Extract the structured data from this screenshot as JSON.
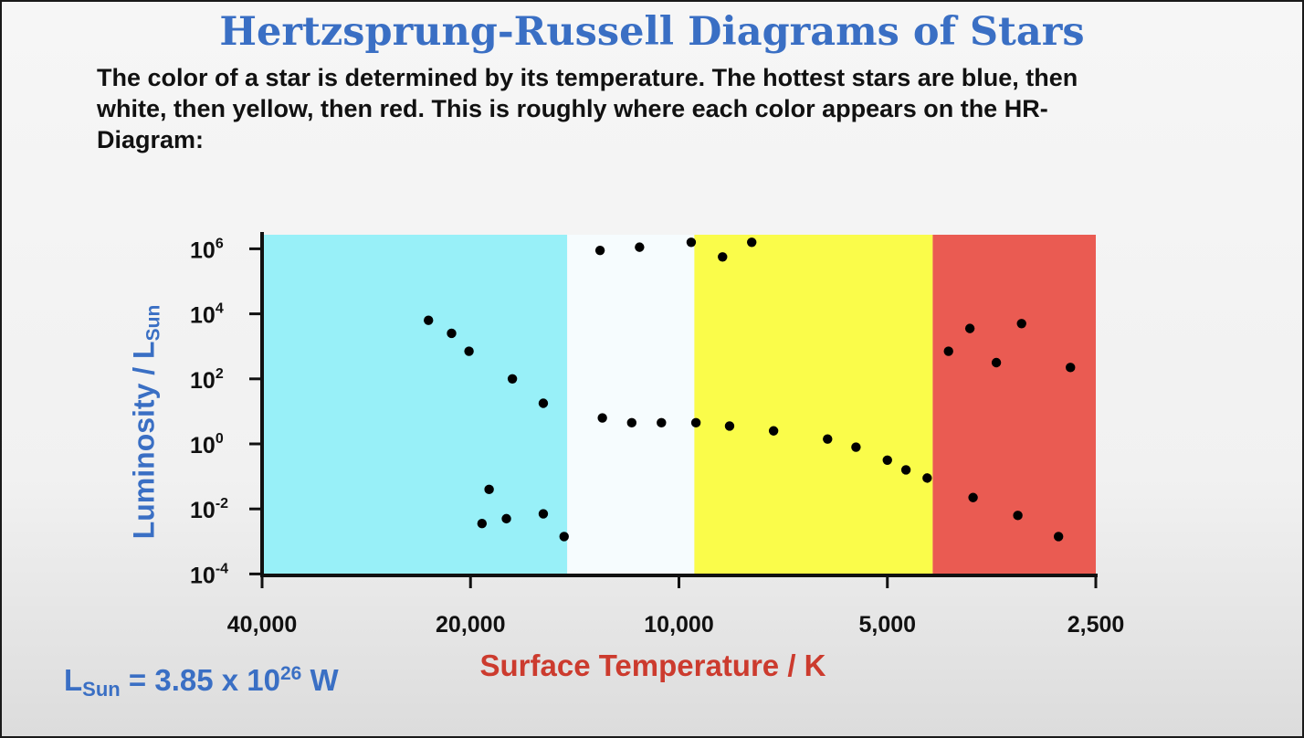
{
  "title": "Hertzsprung-Russell Diagrams of Stars",
  "intro": "The color of a star is determined by its temperature. The hottest stars are blue, then white, then yellow, then red. This is roughly where each color appears on the HR-Diagram:",
  "footnote": {
    "prefix": "L",
    "sub": "Sun",
    "middle": " = 3.85 x 10",
    "sup": "26",
    "unit": " W"
  },
  "chart_data": {
    "type": "scatter",
    "title": "Hertzsprung-Russell Diagrams of Stars",
    "xlabel": "Surface Temperature / K",
    "ylabel": {
      "main": "Luminosity / L",
      "sub": "Sun"
    },
    "x_scale": "log",
    "x_reversed": true,
    "xlim": [
      40000,
      2500
    ],
    "x_ticks": [
      {
        "value": 40000,
        "label": "40,000"
      },
      {
        "value": 20000,
        "label": "20,000"
      },
      {
        "value": 10000,
        "label": "10,000"
      },
      {
        "value": 5000,
        "label": "5,000"
      },
      {
        "value": 2500,
        "label": "2,500"
      }
    ],
    "y_scale": "log",
    "ylim_exponent": [
      -4,
      6.5
    ],
    "y_ticks": [
      {
        "exponent": 6,
        "base": "10",
        "sup": "6"
      },
      {
        "exponent": 4,
        "base": "10",
        "sup": "4"
      },
      {
        "exponent": 2,
        "base": "10",
        "sup": "2"
      },
      {
        "exponent": 0,
        "base": "10",
        "sup": "0"
      },
      {
        "exponent": -2,
        "base": "10",
        "sup": "-2"
      },
      {
        "exponent": -4,
        "base": "10",
        "sup": "-4"
      }
    ],
    "color_bands": [
      {
        "color": "#98f0f8",
        "temp_from": 40000,
        "temp_to": 14500
      },
      {
        "color": "#f6fcfe",
        "temp_from": 14500,
        "temp_to": 9500
      },
      {
        "color": "#fafc4a",
        "temp_from": 9500,
        "temp_to": 4300
      },
      {
        "color": "#ea5b52",
        "temp_from": 4300,
        "temp_to": 2500
      }
    ],
    "points": [
      {
        "temp": 23000,
        "log_lum": 3.8
      },
      {
        "temp": 21300,
        "log_lum": 3.4
      },
      {
        "temp": 20100,
        "log_lum": 2.85
      },
      {
        "temp": 17400,
        "log_lum": 2.0
      },
      {
        "temp": 15700,
        "log_lum": 1.25
      },
      {
        "temp": 12900,
        "log_lum": 0.8
      },
      {
        "temp": 11700,
        "log_lum": 0.65
      },
      {
        "temp": 10600,
        "log_lum": 0.65
      },
      {
        "temp": 9450,
        "log_lum": 0.65
      },
      {
        "temp": 8450,
        "log_lum": 0.55
      },
      {
        "temp": 7300,
        "log_lum": 0.4
      },
      {
        "temp": 6100,
        "log_lum": 0.15
      },
      {
        "temp": 5550,
        "log_lum": -0.1
      },
      {
        "temp": 5000,
        "log_lum": -0.5
      },
      {
        "temp": 4700,
        "log_lum": -0.8
      },
      {
        "temp": 4380,
        "log_lum": -1.05
      },
      {
        "temp": 3760,
        "log_lum": -1.65
      },
      {
        "temp": 3240,
        "log_lum": -2.2
      },
      {
        "temp": 2830,
        "log_lum": -2.85
      },
      {
        "temp": 18800,
        "log_lum": -1.4
      },
      {
        "temp": 19250,
        "log_lum": -2.45
      },
      {
        "temp": 17750,
        "log_lum": -2.3
      },
      {
        "temp": 15700,
        "log_lum": -2.15
      },
      {
        "temp": 14650,
        "log_lum": -2.85
      },
      {
        "temp": 13000,
        "log_lum": 5.95
      },
      {
        "temp": 11400,
        "log_lum": 6.05
      },
      {
        "temp": 9600,
        "log_lum": 6.2
      },
      {
        "temp": 8650,
        "log_lum": 5.75
      },
      {
        "temp": 7850,
        "log_lum": 6.2
      },
      {
        "temp": 4080,
        "log_lum": 2.85
      },
      {
        "temp": 3800,
        "log_lum": 3.55
      },
      {
        "temp": 3480,
        "log_lum": 2.5
      },
      {
        "temp": 3200,
        "log_lum": 3.7
      },
      {
        "temp": 2720,
        "log_lum": 2.35
      }
    ]
  }
}
